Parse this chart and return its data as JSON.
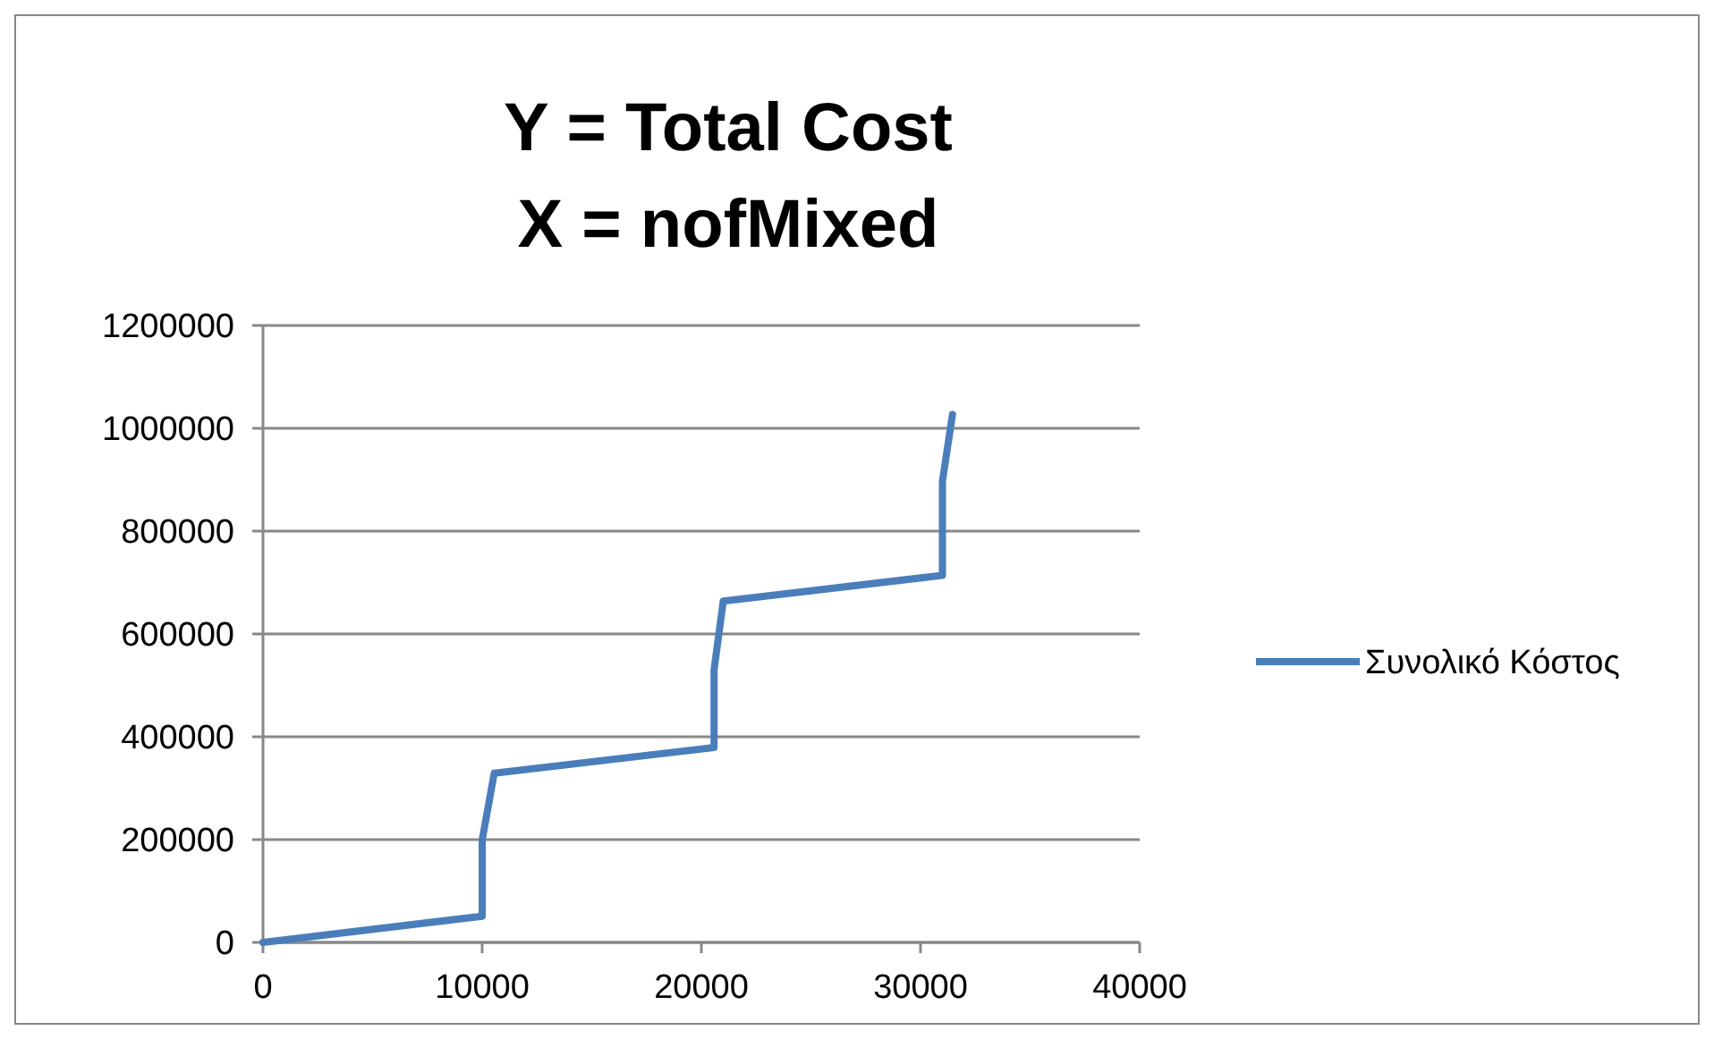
{
  "chart_data": {
    "type": "line",
    "title": "Y = Total Cost\nX = nofMixed",
    "series": [
      {
        "name": "Συνολικό Κόστος",
        "color": "#4a7ebb",
        "x": [
          0,
          10000,
          10000,
          10550,
          20580,
          20580,
          21000,
          31000,
          31000,
          31460
        ],
        "values": [
          0,
          51000,
          199000,
          329000,
          379000,
          530000,
          664000,
          714000,
          897000,
          1027000
        ]
      }
    ],
    "xlim": [
      0,
      40000
    ],
    "xticks": [
      0,
      10000,
      20000,
      30000,
      40000
    ],
    "ylim": [
      0,
      1200000
    ],
    "yticks": [
      0,
      200000,
      400000,
      600000,
      800000,
      1000000,
      1200000
    ],
    "grid": "y",
    "legend": "right",
    "marker": "none",
    "line_style": "solid"
  }
}
